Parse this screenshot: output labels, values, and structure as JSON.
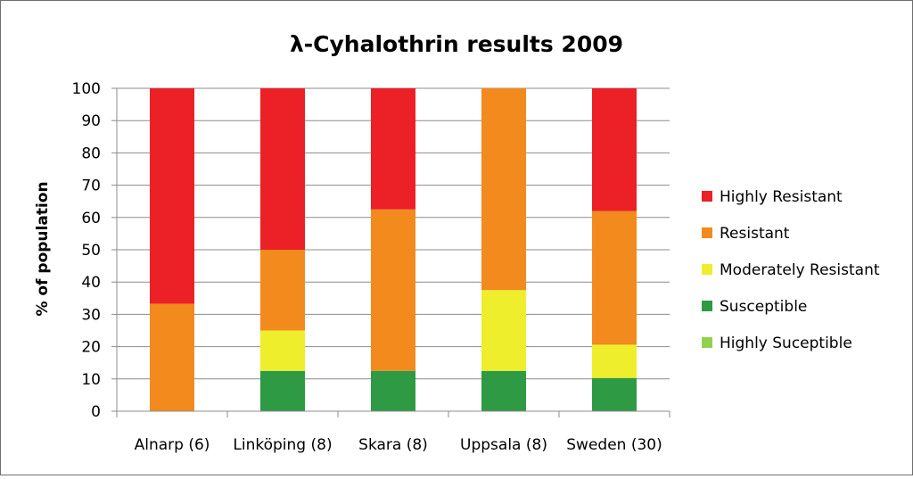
{
  "chart_data": {
    "type": "bar",
    "stacked": true,
    "title": "λ-Cyhalothrin results 2009",
    "xlabel": "",
    "ylabel": "% of population",
    "ylim": [
      0,
      100
    ],
    "yticks": [
      0,
      10,
      20,
      30,
      40,
      50,
      60,
      70,
      80,
      90,
      100
    ],
    "grid": true,
    "legend_position": "right",
    "categories": [
      "Alnarp (6)",
      "Linköping (8)",
      "Skara (8)",
      "Uppsala  (8)",
      "Sweden (30)"
    ],
    "series": [
      {
        "name": "Highly Suceptible",
        "color": "#92d050",
        "values": [
          0,
          0,
          0,
          0,
          0
        ]
      },
      {
        "name": "Susceptible",
        "color": "#2e9a44",
        "values": [
          0,
          12.5,
          12.5,
          12.5,
          10.3
        ]
      },
      {
        "name": "Moderately Resistant",
        "color": "#eeee2c",
        "values": [
          0,
          12.5,
          0,
          25,
          10.3
        ]
      },
      {
        "name": "Resistant",
        "color": "#f28a1e",
        "values": [
          33.3,
          25,
          50,
          62.5,
          41.4
        ]
      },
      {
        "name": "Highly Resistant",
        "color": "#ec2027",
        "values": [
          66.7,
          50,
          37.5,
          0,
          38
        ]
      }
    ],
    "legend_order": [
      "Highly Resistant",
      "Resistant",
      "Moderately Resistant",
      "Susceptible",
      "Highly Suceptible"
    ]
  }
}
